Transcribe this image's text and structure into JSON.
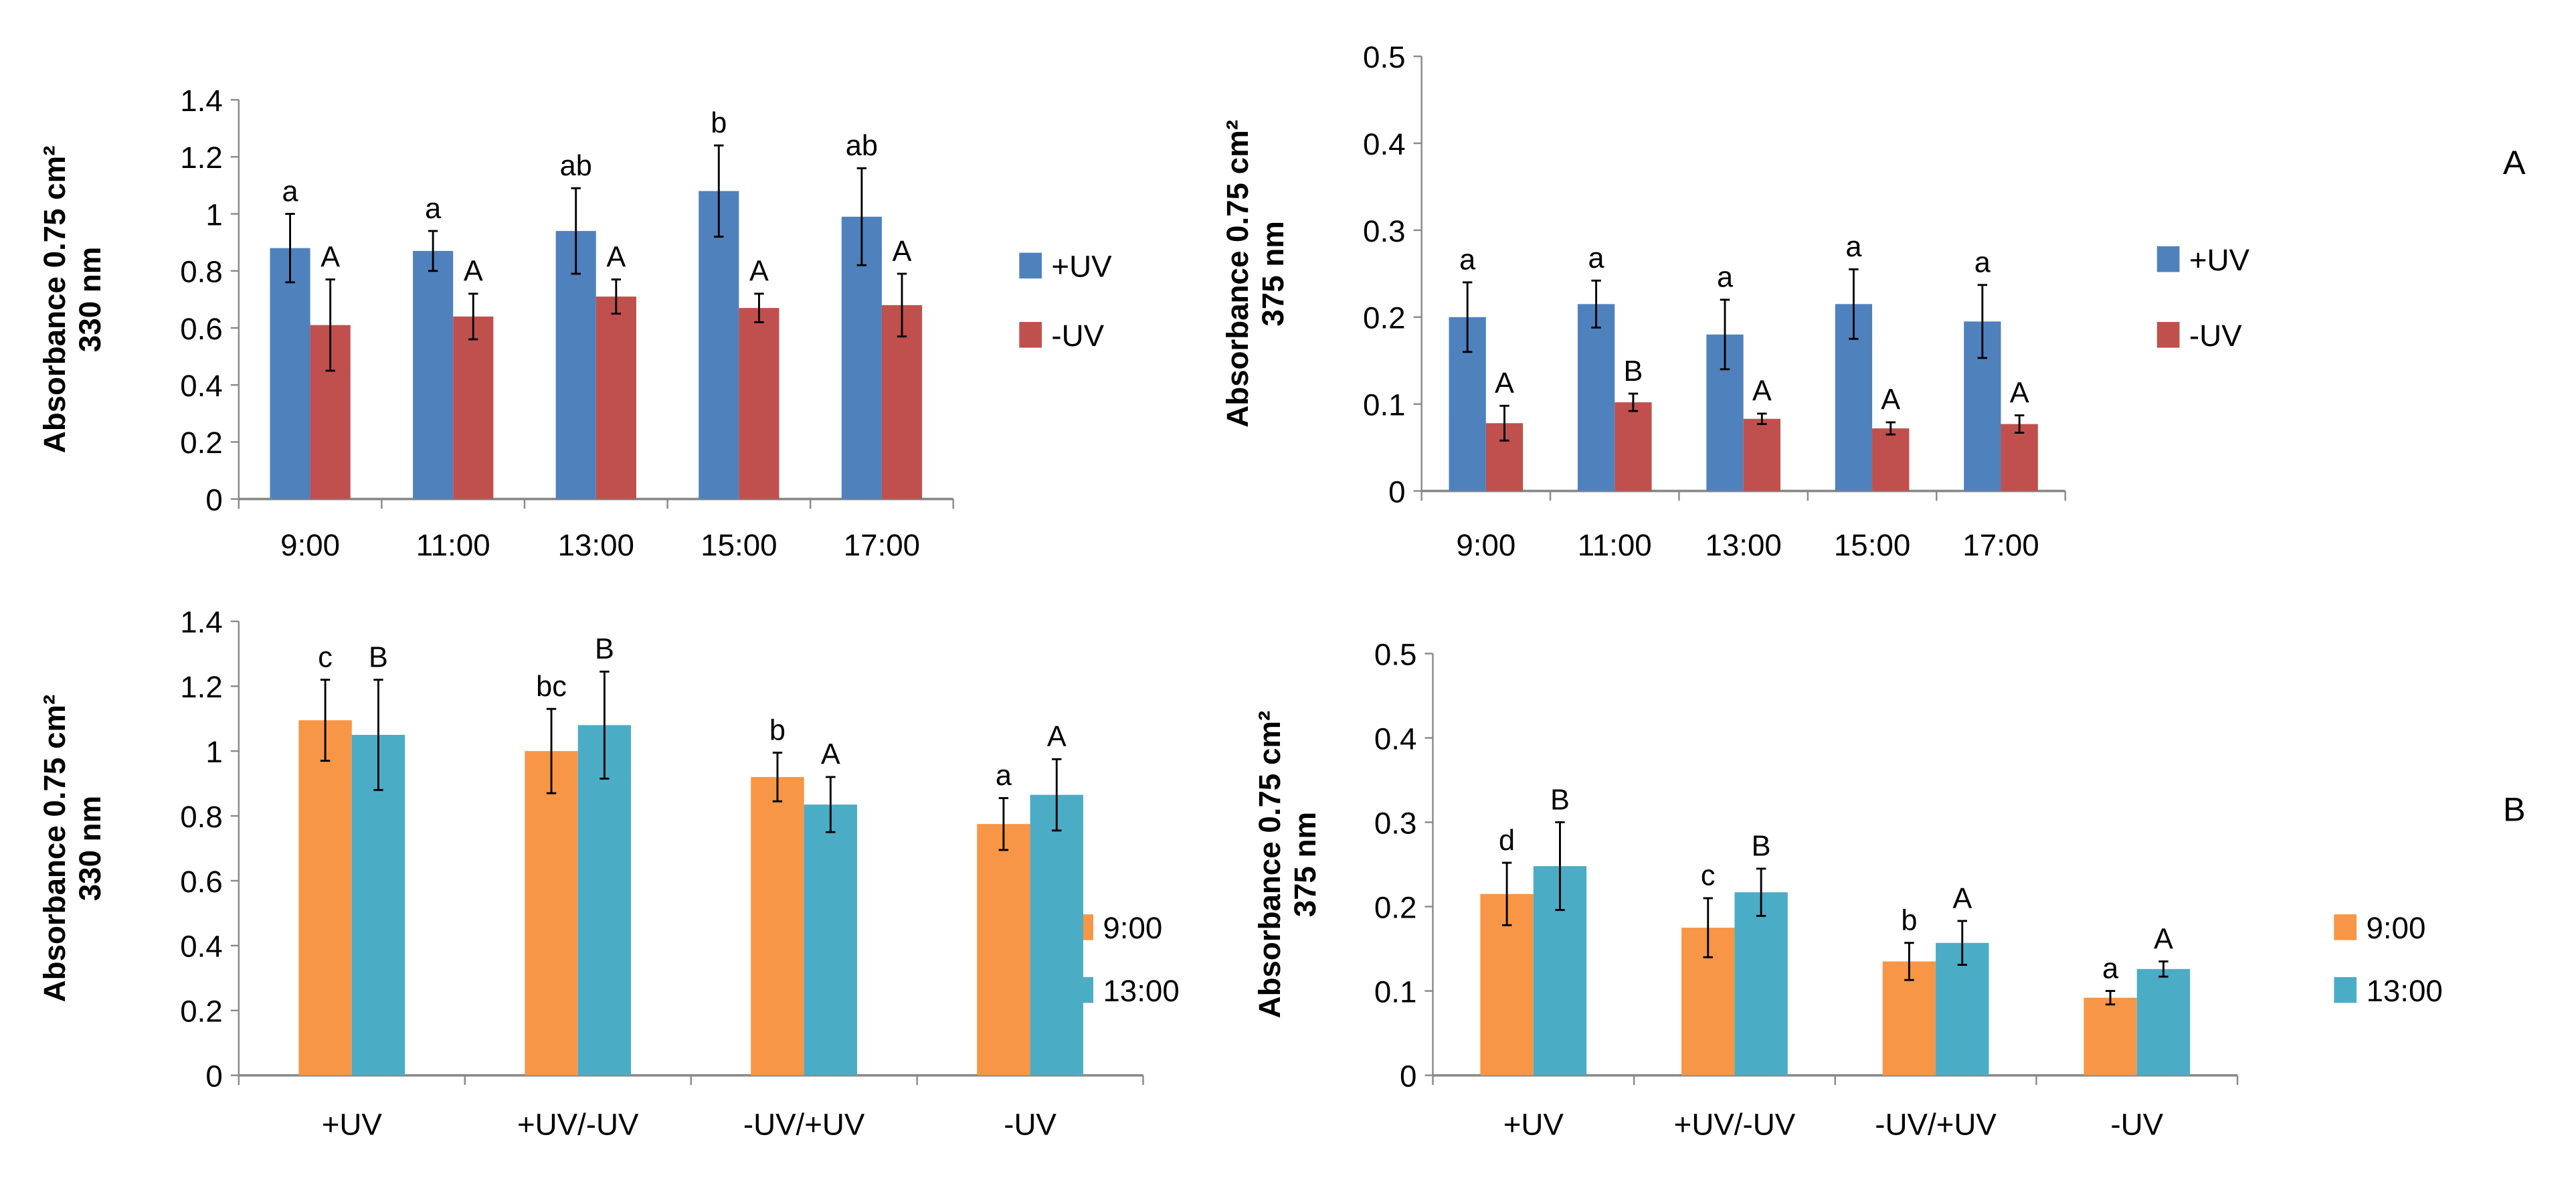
{
  "colors": {
    "plus_uv": "#4F81BD",
    "minus_uv": "#C0504D",
    "t900": "#F79646",
    "t1300": "#4BACC6"
  },
  "panel_labels": {
    "A": "A",
    "B": "B"
  },
  "chart_data": [
    {
      "type": "bar",
      "ylabel": [
        "Absorbance 0.75 cm²",
        "330 nm"
      ],
      "ylim": [
        0,
        1.4
      ],
      "yticks": [
        "0",
        "0.2",
        "0.4",
        "0.6",
        "0.8",
        "1",
        "1.2",
        "1.4"
      ],
      "categories": [
        "9:00",
        "11:00",
        "13:00",
        "15:00",
        "17:00"
      ],
      "legend_position": "right",
      "series": [
        {
          "name": "+UV",
          "values": [
            0.88,
            0.87,
            0.94,
            1.08,
            0.99
          ],
          "errors": [
            0.12,
            0.07,
            0.15,
            0.16,
            0.17
          ],
          "letters": [
            "a",
            "a",
            "ab",
            "b",
            "ab"
          ]
        },
        {
          "name": "-UV",
          "values": [
            0.61,
            0.64,
            0.71,
            0.67,
            0.68
          ],
          "errors": [
            0.16,
            0.08,
            0.06,
            0.05,
            0.11
          ],
          "letters": [
            "A",
            "A",
            "A",
            "A",
            "A"
          ]
        }
      ]
    },
    {
      "type": "bar",
      "ylabel": [
        "Absorbance 0.75 cm²",
        "375 nm"
      ],
      "ylim": [
        0,
        0.5
      ],
      "yticks": [
        "0",
        "0.1",
        "0.2",
        "0.3",
        "0.4",
        "0.5"
      ],
      "categories": [
        "9:00",
        "11:00",
        "13:00",
        "15:00",
        "17:00"
      ],
      "legend_position": "right",
      "series": [
        {
          "name": "+UV",
          "values": [
            0.2,
            0.215,
            0.18,
            0.215,
            0.195
          ],
          "errors": [
            0.04,
            0.027,
            0.04,
            0.04,
            0.042
          ],
          "letters": [
            "a",
            "a",
            "a",
            "a",
            "a"
          ]
        },
        {
          "name": "-UV",
          "values": [
            0.078,
            0.102,
            0.083,
            0.072,
            0.077
          ],
          "errors": [
            0.02,
            0.01,
            0.006,
            0.007,
            0.01
          ],
          "letters": [
            "A",
            "B",
            "A",
            "A",
            "A"
          ]
        }
      ]
    },
    {
      "type": "bar",
      "ylabel": [
        "Absorbance 0.75 cm²",
        "330 nm"
      ],
      "ylim": [
        0,
        1.4
      ],
      "yticks": [
        "0",
        "0.2",
        "0.4",
        "0.6",
        "0.8",
        "1",
        "1.2",
        "1.4"
      ],
      "categories": [
        "+UV",
        "+UV/-UV",
        "-UV/+UV",
        "-UV"
      ],
      "legend_position": "right",
      "series": [
        {
          "name": "9:00",
          "values": [
            1.095,
            1.0,
            0.92,
            0.775
          ],
          "errors": [
            0.125,
            0.13,
            0.075,
            0.08
          ],
          "letters": [
            "c",
            "bc",
            "b",
            "a"
          ]
        },
        {
          "name": "13:00",
          "values": [
            1.05,
            1.08,
            0.835,
            0.865
          ],
          "errors": [
            0.17,
            0.165,
            0.085,
            0.11
          ],
          "letters": [
            "B",
            "B",
            "A",
            "A"
          ]
        }
      ]
    },
    {
      "type": "bar",
      "ylabel": [
        "Absorbance 0.75 cm²",
        "375 nm"
      ],
      "ylim": [
        0,
        0.5
      ],
      "yticks": [
        "0",
        "0.1",
        "0.2",
        "0.3",
        "0.4",
        "0.5"
      ],
      "categories": [
        "+UV",
        "+UV/-UV",
        "-UV/+UV",
        "-UV"
      ],
      "legend_position": "right",
      "series": [
        {
          "name": "9:00",
          "values": [
            0.215,
            0.175,
            0.135,
            0.092
          ],
          "errors": [
            0.037,
            0.035,
            0.022,
            0.008
          ],
          "letters": [
            "d",
            "c",
            "b",
            "a"
          ]
        },
        {
          "name": "13:00",
          "values": [
            0.248,
            0.217,
            0.157,
            0.126
          ],
          "errors": [
            0.052,
            0.028,
            0.026,
            0.009
          ],
          "letters": [
            "B",
            "B",
            "A",
            "A"
          ]
        }
      ]
    }
  ]
}
